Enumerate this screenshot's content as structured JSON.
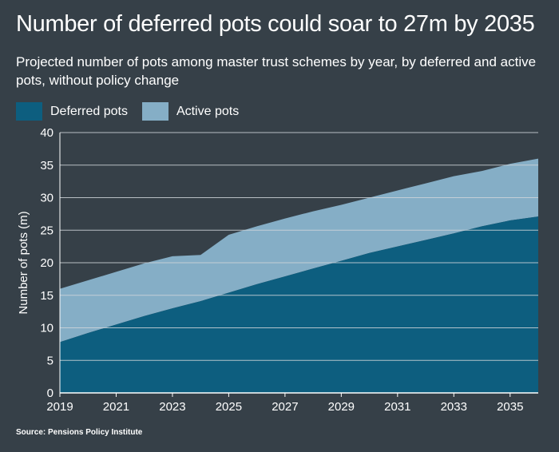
{
  "header": {
    "title": "Number of deferred pots could soar to 27m by 2035",
    "subtitle": "Projected number of pots among master trust schemes by year, by deferred and active pots, without policy change"
  },
  "legend": {
    "deferred_label": "Deferred pots",
    "active_label": "Active pots"
  },
  "colors": {
    "background": "#364048",
    "deferred": "#0d5e7f",
    "active": "#85aec6",
    "grid": "#cfd5d9"
  },
  "source": "Source: Pensions Policy Institute",
  "chart_data": {
    "type": "area",
    "stacked": true,
    "ylabel": "Number of pots (m)",
    "ylim": [
      0,
      40
    ],
    "yticks": [
      0,
      5,
      10,
      15,
      20,
      25,
      30,
      35,
      40
    ],
    "xlim": [
      2019,
      2036
    ],
    "xticks": [
      2019,
      2021,
      2023,
      2025,
      2027,
      2029,
      2031,
      2033,
      2035
    ],
    "grid": true,
    "legend_position": "top-left",
    "x": [
      2019,
      2020,
      2021,
      2022,
      2023,
      2024,
      2025,
      2026,
      2027,
      2028,
      2029,
      2030,
      2031,
      2032,
      2033,
      2034,
      2035,
      2036
    ],
    "series": [
      {
        "name": "Deferred pots",
        "values": [
          7.8,
          9.2,
          10.5,
          11.8,
          13.0,
          14.1,
          15.4,
          16.7,
          17.9,
          19.1,
          20.3,
          21.5,
          22.5,
          23.5,
          24.5,
          25.6,
          26.5,
          27.1
        ]
      },
      {
        "name": "Active pots",
        "values": [
          8.2,
          8.1,
          8.1,
          8.1,
          8.0,
          7.1,
          8.9,
          8.9,
          8.9,
          8.8,
          8.6,
          8.5,
          8.6,
          8.7,
          8.8,
          8.5,
          8.7,
          8.9
        ]
      }
    ]
  }
}
